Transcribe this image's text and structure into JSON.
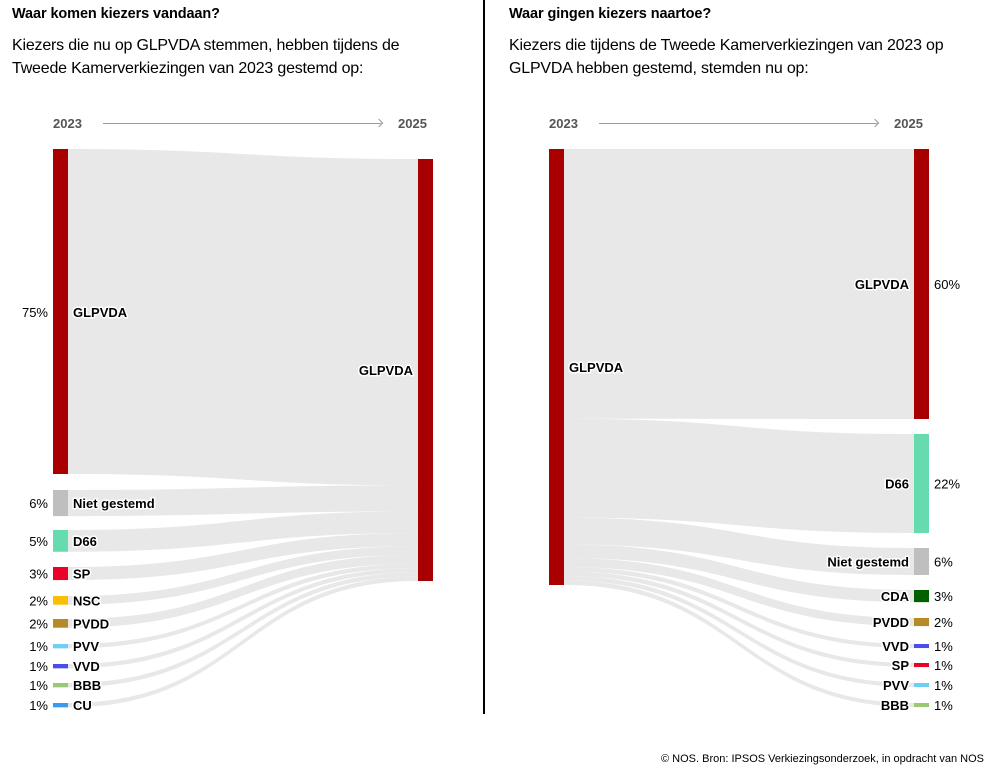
{
  "footer": "© NOS. Bron: IPSOS Verkiezingsonderzoek, in opdracht van NOS",
  "chart_data": [
    {
      "type": "sankey",
      "title": "Waar komen kiezers vandaan?",
      "subtitle_lines": [
        "Kiezers die nu op GLPVDA stemmen, hebben tijdens de",
        "Tweede Kamerverkiezingen van 2023 gestemd op:"
      ],
      "from_label": "2023",
      "to_label": "2025",
      "target": {
        "name": "GLPVDA",
        "color": "#a80000"
      },
      "sources": [
        {
          "name": "GLPVDA",
          "value": 75,
          "pct": "75%",
          "color": "#a80000"
        },
        {
          "name": "Niet gestemd",
          "value": 6,
          "pct": "6%",
          "color": "#bfbfbf"
        },
        {
          "name": "D66",
          "value": 5,
          "pct": "5%",
          "color": "#66dcae"
        },
        {
          "name": "SP",
          "value": 3,
          "pct": "3%",
          "color": "#ea0029"
        },
        {
          "name": "NSC",
          "value": 2,
          "pct": "2%",
          "color": "#f9bf00"
        },
        {
          "name": "PVDD",
          "value": 2,
          "pct": "2%",
          "color": "#b68a26"
        },
        {
          "name": "PVV",
          "value": 1,
          "pct": "1%",
          "color": "#6dcff6"
        },
        {
          "name": "VVD",
          "value": 1,
          "pct": "1%",
          "color": "#4b4cf0"
        },
        {
          "name": "BBB",
          "value": 1,
          "pct": "1%",
          "color": "#9bc873"
        },
        {
          "name": "CU",
          "value": 1,
          "pct": "1%",
          "color": "#3a9af0"
        }
      ]
    },
    {
      "type": "sankey",
      "title": "Waar gingen kiezers naartoe?",
      "subtitle_lines": [
        "Kiezers die tijdens de Tweede Kamerverkiezingen van 2023 op",
        "GLPVDA hebben gestemd, stemden nu op:"
      ],
      "from_label": "2023",
      "to_label": "2025",
      "source": {
        "name": "GLPVDA",
        "color": "#a80000"
      },
      "targets": [
        {
          "name": "GLPVDA",
          "value": 60,
          "pct": "60%",
          "color": "#a80000"
        },
        {
          "name": "D66",
          "value": 22,
          "pct": "22%",
          "color": "#66dcae"
        },
        {
          "name": "Niet gestemd",
          "value": 6,
          "pct": "6%",
          "color": "#bfbfbf"
        },
        {
          "name": "CDA",
          "value": 3,
          "pct": "3%",
          "color": "#006000"
        },
        {
          "name": "PVDD",
          "value": 2,
          "pct": "2%",
          "color": "#b68a26"
        },
        {
          "name": "VVD",
          "value": 1,
          "pct": "1%",
          "color": "#4b4cf0"
        },
        {
          "name": "SP",
          "value": 1,
          "pct": "1%",
          "color": "#ea0029"
        },
        {
          "name": "PVV",
          "value": 1,
          "pct": "1%",
          "color": "#6dcff6"
        },
        {
          "name": "BBB",
          "value": 1,
          "pct": "1%",
          "color": "#9bc873"
        }
      ]
    }
  ]
}
